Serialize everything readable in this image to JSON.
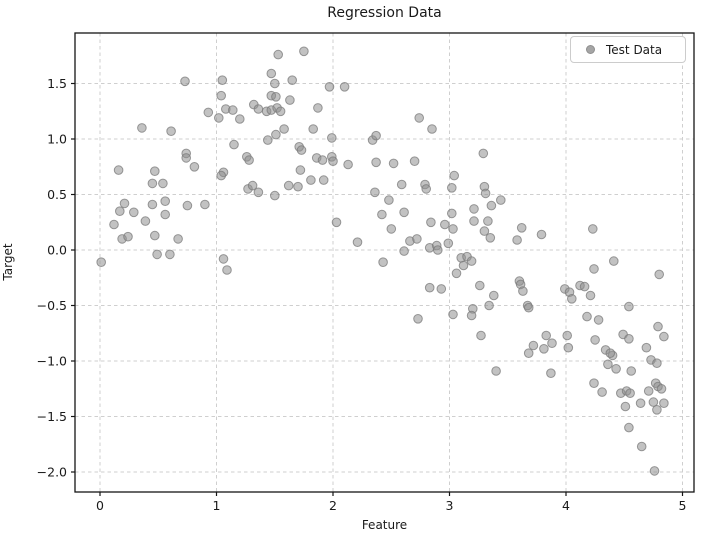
{
  "colors": {
    "background": "#ffffff",
    "spine": "#151515",
    "grid": "#cfcfcf",
    "tick_text": "#1a1a1a",
    "marker_fill": "#909090",
    "marker_edge": "#7a7a7a"
  },
  "legend": {
    "label": "Test Data",
    "position": "upper right"
  },
  "chart_data": {
    "type": "scatter",
    "title": "Regression Data",
    "xlabel": "Feature",
    "ylabel": "Target",
    "xlim": [
      -0.215,
      5.1
    ],
    "ylim": [
      -2.18,
      1.955
    ],
    "xticks": [
      0,
      1,
      2,
      3,
      4,
      5
    ],
    "yticks": [
      1.5,
      1.0,
      0.5,
      0.0,
      -0.5,
      -1.0,
      -1.5,
      -2.0
    ],
    "grid": true,
    "grid_style": "dashed",
    "legend_position": "upper right",
    "marker_opacity": 0.55,
    "series": [
      {
        "name": "Test Data",
        "points": [
          [
            0.73,
            1.52
          ],
          [
            1.05,
            1.53
          ],
          [
            1.04,
            1.39
          ],
          [
            0.93,
            1.24
          ],
          [
            1.02,
            1.19
          ],
          [
            1.08,
            1.27
          ],
          [
            1.14,
            1.26
          ],
          [
            1.15,
            0.95
          ],
          [
            0.36,
            1.1
          ],
          [
            0.61,
            1.07
          ],
          [
            0.74,
            0.87
          ],
          [
            0.74,
            0.83
          ],
          [
            0.81,
            0.75
          ],
          [
            0.16,
            0.72
          ],
          [
            0.47,
            0.71
          ],
          [
            0.45,
            0.6
          ],
          [
            0.54,
            0.6
          ],
          [
            1.06,
            0.7
          ],
          [
            1.04,
            0.67
          ],
          [
            1.53,
            1.76
          ],
          [
            1.75,
            1.79
          ],
          [
            1.47,
            1.59
          ],
          [
            1.65,
            1.53
          ],
          [
            1.5,
            1.5
          ],
          [
            1.97,
            1.47
          ],
          [
            2.1,
            1.47
          ],
          [
            1.47,
            1.39
          ],
          [
            1.51,
            1.38
          ],
          [
            1.63,
            1.35
          ],
          [
            1.32,
            1.31
          ],
          [
            1.36,
            1.27
          ],
          [
            1.43,
            1.25
          ],
          [
            1.47,
            1.26
          ],
          [
            1.52,
            1.28
          ],
          [
            1.55,
            1.25
          ],
          [
            1.2,
            1.18
          ],
          [
            1.87,
            1.28
          ],
          [
            1.58,
            1.09
          ],
          [
            1.51,
            1.04
          ],
          [
            1.83,
            1.09
          ],
          [
            1.44,
            0.99
          ],
          [
            1.99,
            1.01
          ],
          [
            2.34,
            0.99
          ],
          [
            2.37,
            1.03
          ],
          [
            1.71,
            0.93
          ],
          [
            1.73,
            0.9
          ],
          [
            1.26,
            0.84
          ],
          [
            1.28,
            0.81
          ],
          [
            1.86,
            0.83
          ],
          [
            1.91,
            0.81
          ],
          [
            1.99,
            0.84
          ],
          [
            2.0,
            0.8
          ],
          [
            2.13,
            0.77
          ],
          [
            2.37,
            0.79
          ],
          [
            2.52,
            0.78
          ],
          [
            1.72,
            0.72
          ],
          [
            1.62,
            0.58
          ],
          [
            1.7,
            0.57
          ],
          [
            1.81,
            0.63
          ],
          [
            1.92,
            0.63
          ],
          [
            1.27,
            0.55
          ],
          [
            1.31,
            0.58
          ],
          [
            1.36,
            0.52
          ],
          [
            1.5,
            0.49
          ],
          [
            2.74,
            1.19
          ],
          [
            2.85,
            1.09
          ],
          [
            3.29,
            0.87
          ],
          [
            2.7,
            0.8
          ],
          [
            3.04,
            0.67
          ],
          [
            2.59,
            0.59
          ],
          [
            2.79,
            0.59
          ],
          [
            3.02,
            0.56
          ],
          [
            3.3,
            0.57
          ],
          [
            3.31,
            0.51
          ],
          [
            3.44,
            0.45
          ],
          [
            0.21,
            0.42
          ],
          [
            0.45,
            0.41
          ],
          [
            0.56,
            0.44
          ],
          [
            0.17,
            0.35
          ],
          [
            0.29,
            0.34
          ],
          [
            0.56,
            0.32
          ],
          [
            0.75,
            0.4
          ],
          [
            0.9,
            0.41
          ],
          [
            0.39,
            0.26
          ],
          [
            0.12,
            0.23
          ],
          [
            0.19,
            0.1
          ],
          [
            0.24,
            0.12
          ],
          [
            0.47,
            0.13
          ],
          [
            0.67,
            0.1
          ],
          [
            0.49,
            -0.04
          ],
          [
            0.6,
            -0.04
          ],
          [
            0.01,
            -0.11
          ],
          [
            1.06,
            -0.08
          ],
          [
            1.09,
            -0.18
          ],
          [
            2.36,
            0.52
          ],
          [
            2.48,
            0.45
          ],
          [
            2.42,
            0.32
          ],
          [
            2.03,
            0.25
          ],
          [
            2.5,
            0.19
          ],
          [
            2.21,
            0.07
          ],
          [
            2.43,
            -0.11
          ],
          [
            2.8,
            0.55
          ],
          [
            2.61,
            0.34
          ],
          [
            3.21,
            0.37
          ],
          [
            3.36,
            0.4
          ],
          [
            2.84,
            0.25
          ],
          [
            3.02,
            0.33
          ],
          [
            3.21,
            0.26
          ],
          [
            2.96,
            0.23
          ],
          [
            3.03,
            0.19
          ],
          [
            3.33,
            0.26
          ],
          [
            3.3,
            0.17
          ],
          [
            3.35,
            0.11
          ],
          [
            3.62,
            0.2
          ],
          [
            3.58,
            0.09
          ],
          [
            3.79,
            0.14
          ],
          [
            2.66,
            0.08
          ],
          [
            2.72,
            0.1
          ],
          [
            2.83,
            0.02
          ],
          [
            2.89,
            0.04
          ],
          [
            2.9,
            0.0
          ],
          [
            2.99,
            0.06
          ],
          [
            2.61,
            -0.01
          ],
          [
            3.1,
            -0.07
          ],
          [
            3.15,
            -0.06
          ],
          [
            3.19,
            -0.1
          ],
          [
            3.12,
            -0.14
          ],
          [
            3.06,
            -0.21
          ],
          [
            2.83,
            -0.34
          ],
          [
            2.93,
            -0.35
          ],
          [
            3.26,
            -0.32
          ],
          [
            3.6,
            -0.28
          ],
          [
            3.61,
            -0.31
          ],
          [
            3.63,
            -0.37
          ],
          [
            3.38,
            -0.41
          ],
          [
            3.34,
            -0.5
          ],
          [
            3.67,
            -0.5
          ],
          [
            3.68,
            -0.52
          ],
          [
            3.2,
            -0.53
          ],
          [
            3.19,
            -0.59
          ],
          [
            2.73,
            -0.62
          ],
          [
            3.03,
            -0.58
          ],
          [
            3.27,
            -0.77
          ],
          [
            3.83,
            -0.77
          ],
          [
            3.88,
            -0.84
          ],
          [
            3.72,
            -0.86
          ],
          [
            3.81,
            -0.89
          ],
          [
            4.23,
            0.19
          ],
          [
            4.41,
            -0.1
          ],
          [
            4.24,
            -0.17
          ],
          [
            4.8,
            -0.22
          ],
          [
            3.99,
            -0.35
          ],
          [
            4.12,
            -0.32
          ],
          [
            4.16,
            -0.33
          ],
          [
            4.03,
            -0.38
          ],
          [
            4.05,
            -0.44
          ],
          [
            4.21,
            -0.41
          ],
          [
            4.54,
            -0.51
          ],
          [
            4.18,
            -0.6
          ],
          [
            4.28,
            -0.63
          ],
          [
            4.01,
            -0.77
          ],
          [
            4.25,
            -0.81
          ],
          [
            4.49,
            -0.76
          ],
          [
            4.54,
            -0.8
          ],
          [
            4.79,
            -0.69
          ],
          [
            4.84,
            -0.78
          ],
          [
            4.02,
            -0.88
          ],
          [
            4.34,
            -0.9
          ],
          [
            4.69,
            -0.88
          ],
          [
            3.68,
            -0.93
          ],
          [
            3.4,
            -1.09
          ],
          [
            3.87,
            -1.11
          ],
          [
            4.4,
            -0.95
          ],
          [
            4.38,
            -0.93
          ],
          [
            4.36,
            -1.03
          ],
          [
            4.43,
            -1.07
          ],
          [
            4.73,
            -0.99
          ],
          [
            4.78,
            -1.02
          ],
          [
            4.56,
            -1.09
          ],
          [
            4.24,
            -1.2
          ],
          [
            4.31,
            -1.28
          ],
          [
            4.47,
            -1.29
          ],
          [
            4.52,
            -1.27
          ],
          [
            4.55,
            -1.29
          ],
          [
            4.71,
            -1.27
          ],
          [
            4.77,
            -1.2
          ],
          [
            4.79,
            -1.23
          ],
          [
            4.82,
            -1.25
          ],
          [
            4.51,
            -1.41
          ],
          [
            4.64,
            -1.38
          ],
          [
            4.75,
            -1.37
          ],
          [
            4.78,
            -1.44
          ],
          [
            4.84,
            -1.38
          ],
          [
            4.54,
            -1.6
          ],
          [
            4.65,
            -1.77
          ],
          [
            4.76,
            -1.99
          ]
        ]
      }
    ]
  }
}
